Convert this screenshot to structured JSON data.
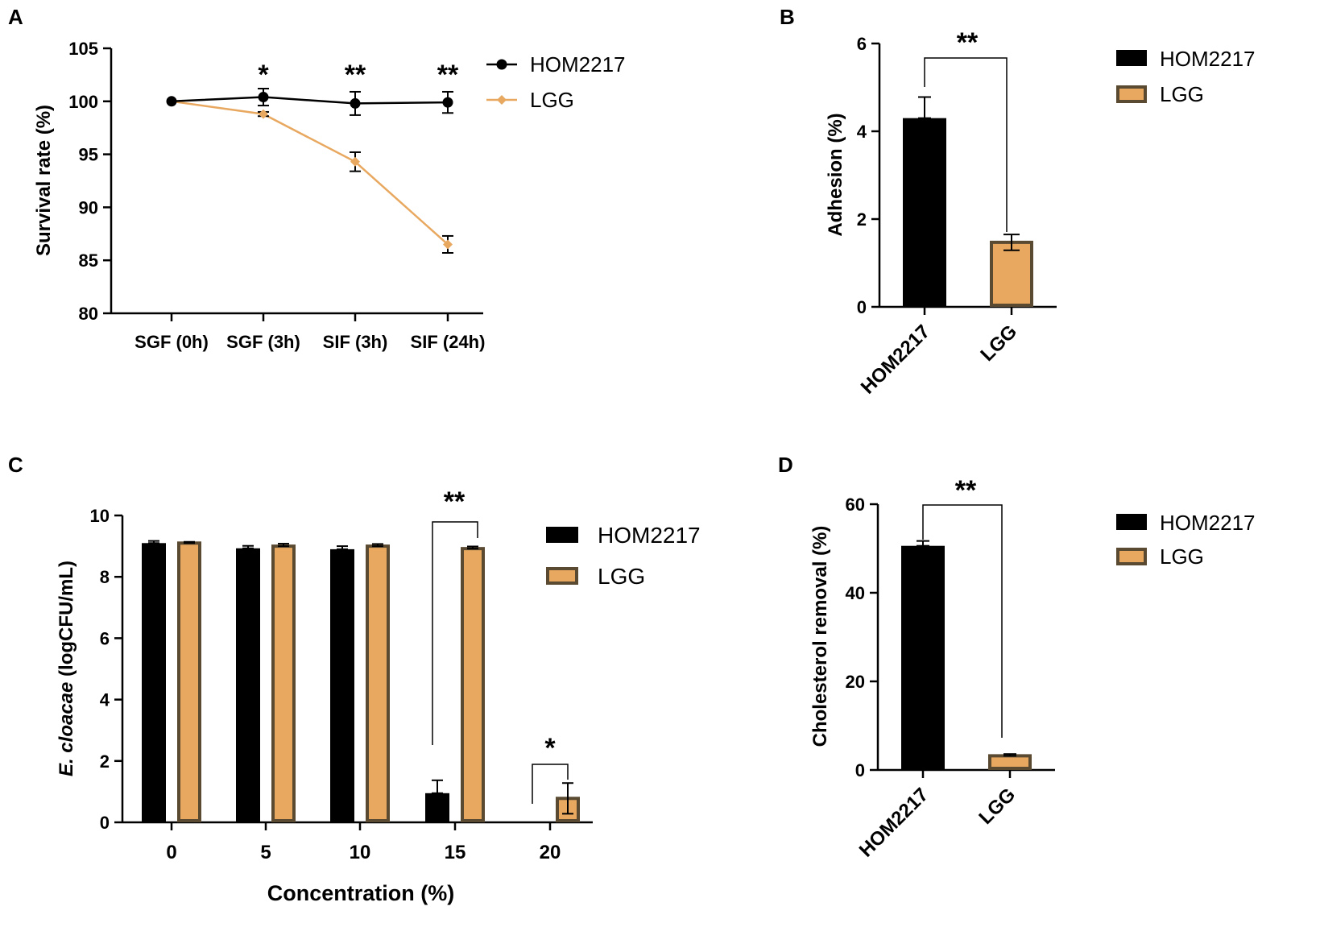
{
  "colors": {
    "hom": "#000000",
    "lgg_fill": "#E8A860",
    "lgg_edge": "#5A4A32",
    "lgg_line": "#E8A860"
  },
  "chart_data": [
    {
      "panel": "A",
      "type": "line",
      "ylabel": "Survival rate (%)",
      "xlabel": "",
      "ylim": [
        80,
        105
      ],
      "yticks": [
        "80",
        "85",
        "90",
        "95",
        "100",
        "105"
      ],
      "categories": [
        "SGF (0h)",
        "SGF (3h)",
        "SIF (3h)",
        "SIF (24h)"
      ],
      "series": [
        {
          "name": "HOM2217",
          "values": [
            100,
            100.4,
            99.8,
            99.9
          ],
          "errors": [
            0,
            0.8,
            1.1,
            1.0
          ]
        },
        {
          "name": "LGG",
          "values": [
            100,
            98.8,
            94.3,
            86.5
          ],
          "errors": [
            0,
            0.2,
            0.9,
            0.8
          ]
        }
      ],
      "significance": [
        "",
        "*",
        "**",
        "**"
      ],
      "legend": [
        "HOM2217",
        "LGG"
      ]
    },
    {
      "panel": "B",
      "type": "bar",
      "ylabel": "Adhesion (%)",
      "ylim": [
        0,
        6
      ],
      "yticks": [
        "0",
        "2",
        "4",
        "6"
      ],
      "categories": [
        "HOM2217",
        "LGG"
      ],
      "values": [
        4.3,
        1.47
      ],
      "errors": [
        0.48,
        0.18
      ],
      "significance": "**",
      "legend": [
        "HOM2217",
        "LGG"
      ]
    },
    {
      "panel": "C",
      "type": "bar",
      "ylabel_italic": "E. cloacae",
      "ylabel_rest": " (logCFU/mL)",
      "xlabel": "Concentration (%)",
      "ylim": [
        0,
        10
      ],
      "yticks": [
        "0",
        "2",
        "4",
        "6",
        "8",
        "10"
      ],
      "categories": [
        "0",
        "5",
        "10",
        "15",
        "20"
      ],
      "series": [
        {
          "name": "HOM2217",
          "values": [
            9.1,
            8.93,
            8.9,
            0.95,
            0
          ],
          "errors": [
            0.07,
            0.08,
            0.1,
            0.42,
            0
          ]
        },
        {
          "name": "LGG",
          "values": [
            9.1,
            9.0,
            9.0,
            8.92,
            0.78
          ],
          "errors": [
            0.04,
            0.08,
            0.07,
            0.07,
            0.5
          ]
        }
      ],
      "significance": [
        "",
        "",
        "",
        "**",
        "*"
      ],
      "legend": [
        "HOM2217",
        "LGG"
      ]
    },
    {
      "panel": "D",
      "type": "bar",
      "ylabel": "Cholesterol removal (%)",
      "ylim": [
        0,
        60
      ],
      "yticks": [
        "0",
        "20",
        "40",
        "60"
      ],
      "categories": [
        "HOM2217",
        "LGG"
      ],
      "values": [
        50.6,
        3.2
      ],
      "errors": [
        1.1,
        0.4
      ],
      "significance": "**",
      "legend": [
        "HOM2217",
        "LGG"
      ]
    }
  ]
}
